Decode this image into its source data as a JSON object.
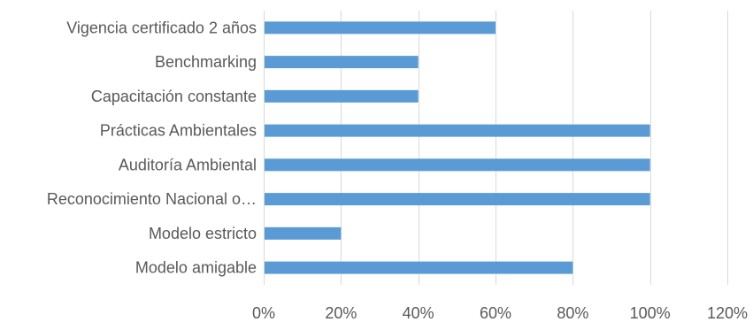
{
  "chart_data": {
    "type": "bar",
    "orientation": "horizontal",
    "categories": [
      "Vigencia certificado 2 años",
      "Benchmarking",
      "Capacitación constante",
      "Prácticas Ambientales",
      "Auditoría Ambiental",
      "Reconocimiento Nacional o…",
      "Modelo estricto",
      "Modelo amigable"
    ],
    "values": [
      0.6,
      0.4,
      0.4,
      1.0,
      1.0,
      1.0,
      0.2,
      0.8
    ],
    "xlim": [
      0,
      1.2
    ],
    "ticks": [
      "0%",
      "20%",
      "40%",
      "60%",
      "80%",
      "100%",
      "120%"
    ],
    "tick_values": [
      0,
      0.2,
      0.4,
      0.6,
      0.8,
      1.0,
      1.2
    ],
    "grid": true,
    "legend": "none",
    "title": "",
    "xlabel": "",
    "ylabel": "",
    "bar_color": "#5b9bd5"
  }
}
